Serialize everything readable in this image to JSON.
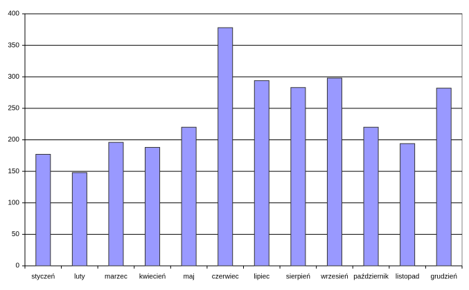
{
  "chart_data": {
    "type": "bar",
    "categories": [
      "styczeń",
      "luty",
      "marzec",
      "kwiecień",
      "maj",
      "czerwiec",
      "lipiec",
      "sierpień",
      "wrzesień",
      "październik",
      "listopad",
      "grudzień"
    ],
    "values": [
      177,
      148,
      196,
      188,
      220,
      378,
      294,
      283,
      298,
      220,
      194,
      282
    ],
    "color": "#9999ff",
    "ylim": [
      0,
      400
    ],
    "yticks": [
      0,
      50,
      100,
      150,
      200,
      250,
      300,
      350,
      400
    ],
    "grid": true
  }
}
